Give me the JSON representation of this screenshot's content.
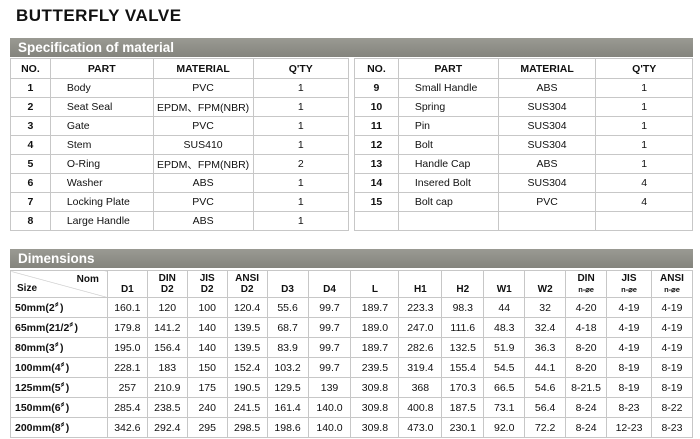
{
  "title": "BUTTERFLY  VALVE",
  "material_section": {
    "heading": "Specification of material",
    "headers": [
      "NO.",
      "PART",
      "MATERIAL",
      "Q'TY"
    ],
    "left_rows": [
      {
        "no": "1",
        "part": "Body",
        "material": "PVC",
        "qty": "1"
      },
      {
        "no": "2",
        "part": "Seat  Seal",
        "material": "EPDM、FPM(NBR)",
        "qty": "1"
      },
      {
        "no": "3",
        "part": "Gate",
        "material": "PVC",
        "qty": "1"
      },
      {
        "no": "4",
        "part": "Stem",
        "material": "SUS410",
        "qty": "1"
      },
      {
        "no": "5",
        "part": "O-Ring",
        "material": "EPDM、FPM(NBR)",
        "qty": "2"
      },
      {
        "no": "6",
        "part": "Washer",
        "material": "ABS",
        "qty": "1"
      },
      {
        "no": "7",
        "part": "Locking  Plate",
        "material": "PVC",
        "qty": "1"
      },
      {
        "no": "8",
        "part": "Large Handle",
        "material": "ABS",
        "qty": "1"
      }
    ],
    "right_rows": [
      {
        "no": "9",
        "part": "Small  Handle",
        "material": "ABS",
        "qty": "1"
      },
      {
        "no": "10",
        "part": "Spring",
        "material": "SUS304",
        "qty": "1"
      },
      {
        "no": "11",
        "part": "Pin",
        "material": "SUS304",
        "qty": "1"
      },
      {
        "no": "12",
        "part": "Bolt",
        "material": "SUS304",
        "qty": "1"
      },
      {
        "no": "13",
        "part": "Handle  Cap",
        "material": "ABS",
        "qty": "1"
      },
      {
        "no": "14",
        "part": "Insered  Bolt",
        "material": "SUS304",
        "qty": "4"
      },
      {
        "no": "15",
        "part": "Bolt  cap",
        "material": "PVC",
        "qty": "4"
      }
    ]
  },
  "dimensions_section": {
    "heading": "Dimensions",
    "corner_nom": "Nom",
    "corner_size": "Size",
    "headers": [
      {
        "top": "",
        "bottom": "D1"
      },
      {
        "top": "DIN",
        "bottom": "D2"
      },
      {
        "top": "JIS",
        "bottom": "D2"
      },
      {
        "top": "ANSI",
        "bottom": "D2"
      },
      {
        "top": "",
        "bottom": "D3"
      },
      {
        "top": "",
        "bottom": "D4"
      },
      {
        "top": "",
        "bottom": "L"
      },
      {
        "top": "",
        "bottom": "H1"
      },
      {
        "top": "",
        "bottom": "H2"
      },
      {
        "top": "",
        "bottom": "W1"
      },
      {
        "top": "",
        "bottom": "W2"
      },
      {
        "top": "DIN",
        "bottom": "n-⌀e"
      },
      {
        "top": "JIS",
        "bottom": "n-⌀e"
      },
      {
        "top": "ANSI",
        "bottom": "n-⌀e"
      }
    ],
    "rows": [
      {
        "size": "50mm(2〞)",
        "values": [
          "160.1",
          "120",
          "100",
          "120.4",
          "55.6",
          "99.7",
          "189.7",
          "223.3",
          "98.3",
          "44",
          "32",
          "4-20",
          "4-19",
          "4-19"
        ]
      },
      {
        "size": "65mm(21/2〞)",
        "values": [
          "179.8",
          "141.2",
          "140",
          "139.5",
          "68.7",
          "99.7",
          "189.0",
          "247.0",
          "111.6",
          "48.3",
          "32.4",
          "4-18",
          "4-19",
          "4-19"
        ]
      },
      {
        "size": "80mm(3〞)",
        "values": [
          "195.0",
          "156.4",
          "140",
          "139.5",
          "83.9",
          "99.7",
          "189.7",
          "282.6",
          "132.5",
          "51.9",
          "36.3",
          "8-20",
          "4-19",
          "4-19"
        ]
      },
      {
        "size": "100mm(4〞)",
        "values": [
          "228.1",
          "183",
          "150",
          "152.4",
          "103.2",
          "99.7",
          "239.5",
          "319.4",
          "155.4",
          "54.5",
          "44.1",
          "8-20",
          "8-19",
          "8-19"
        ]
      },
      {
        "size": "125mm(5〞)",
        "values": [
          "257",
          "210.9",
          "175",
          "190.5",
          "129.5",
          "139",
          "309.8",
          "368",
          "170.3",
          "66.5",
          "54.6",
          "8-21.5",
          "8-19",
          "8-19"
        ]
      },
      {
        "size": "150mm(6〞)",
        "values": [
          "285.4",
          "238.5",
          "240",
          "241.5",
          "161.4",
          "140.0",
          "309.8",
          "400.8",
          "187.5",
          "73.1",
          "56.4",
          "8-24",
          "8-23",
          "8-22"
        ]
      },
      {
        "size": "200mm(8〞)",
        "values": [
          "342.6",
          "292.4",
          "295",
          "298.5",
          "198.6",
          "140.0",
          "309.8",
          "473.0",
          "230.1",
          "92.0",
          "72.2",
          "8-24",
          "12-23",
          "8-23"
        ]
      }
    ]
  }
}
